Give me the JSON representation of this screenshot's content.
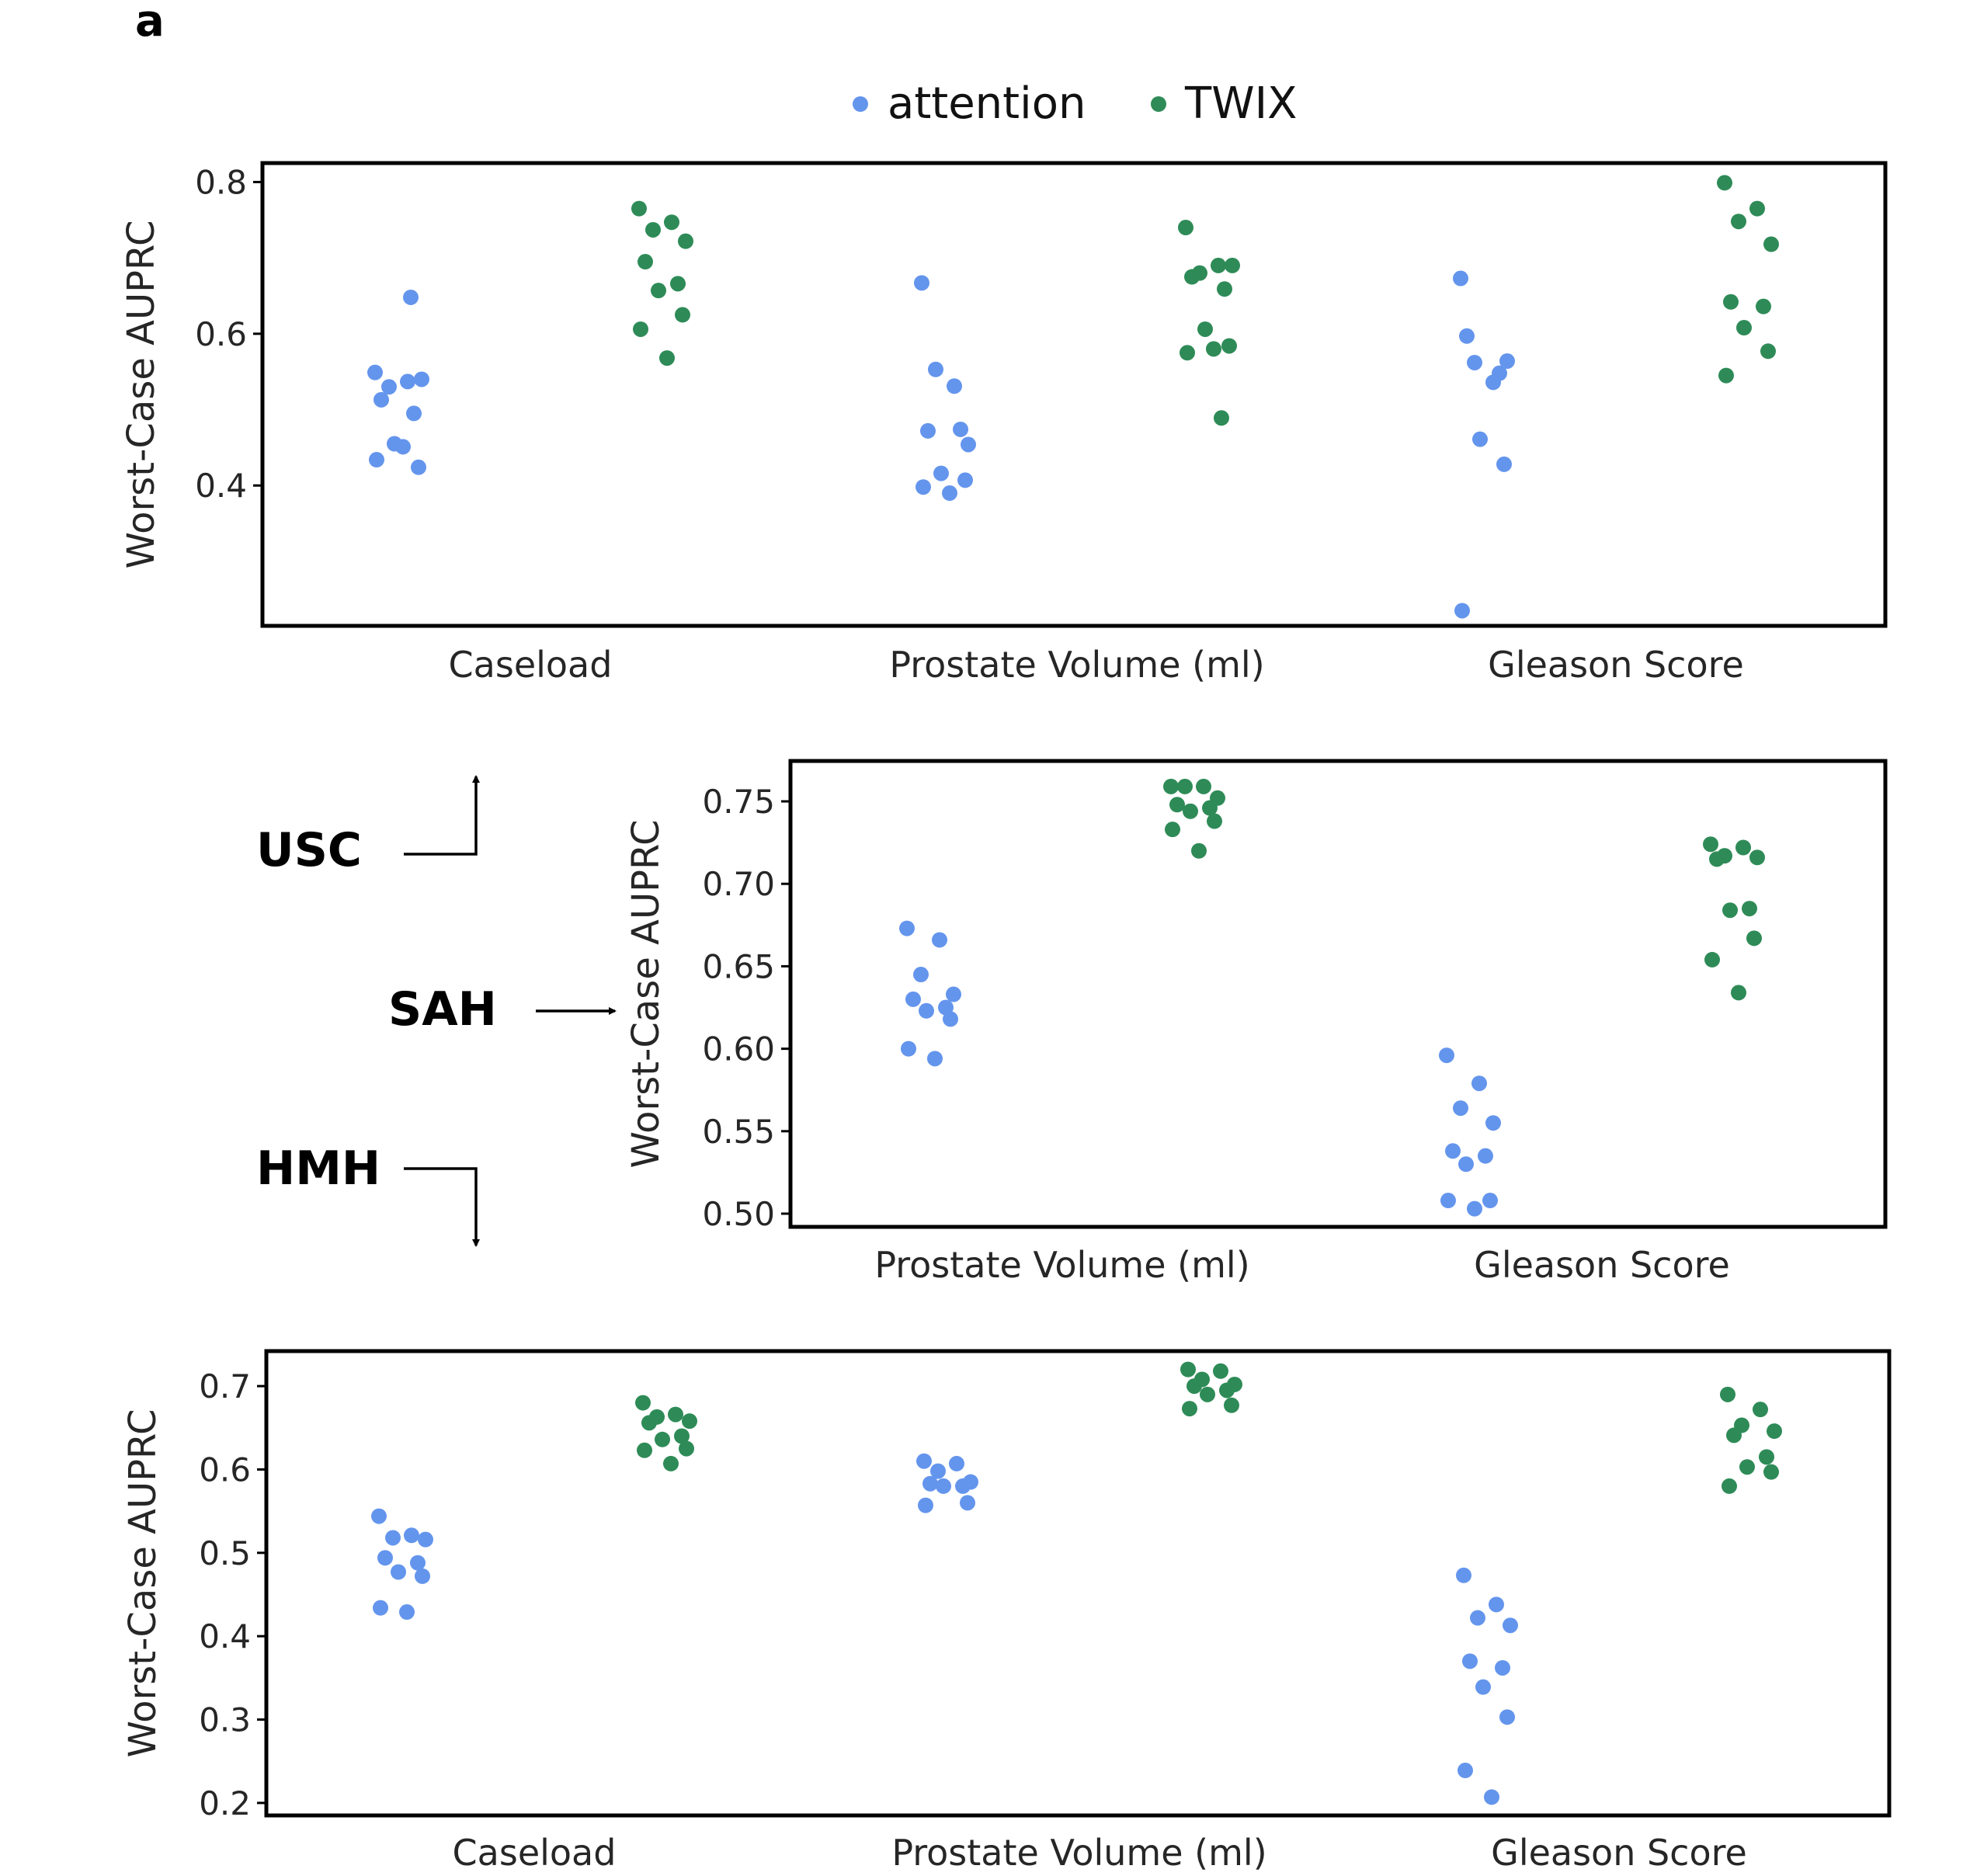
{
  "panel_label": "a",
  "legend": [
    {
      "label": "attention",
      "color": "#6495ED"
    },
    {
      "label": "TWIX",
      "color": "#2E8B57"
    }
  ],
  "sites": {
    "usc": "USC",
    "sah": "SAH",
    "hmh": "HMH"
  },
  "chart_data": [
    {
      "type": "scatter",
      "site": "USC",
      "ylabel": "Worst-Case AUPRC",
      "ylim": [
        0.215,
        0.825
      ],
      "yticks": [
        0.4,
        0.6,
        0.8
      ],
      "ytick_labels": [
        "0.4",
        "0.6",
        "0.8"
      ],
      "categories": [
        "Caseload",
        "Prostate Volume (ml)",
        "Gleason Score"
      ],
      "series": [
        {
          "name": "attention",
          "values": [
            [
              0.549,
              0.537,
              0.53,
              0.54,
              0.513,
              0.495,
              0.455,
              0.424,
              0.434,
              0.451,
              0.648
            ],
            [
              0.667,
              0.531,
              0.553,
              0.454,
              0.472,
              0.474,
              0.416,
              0.407,
              0.398,
              0.39
            ],
            [
              0.673,
              0.536,
              0.562,
              0.564,
              0.597,
              0.548,
              0.461,
              0.428,
              0.235
            ]
          ]
        },
        {
          "name": "TWIX",
          "values": [
            [
              0.765,
              0.747,
              0.737,
              0.722,
              0.695,
              0.666,
              0.657,
              0.625,
              0.606,
              0.568
            ],
            [
              0.74,
              0.69,
              0.68,
              0.69,
              0.675,
              0.659,
              0.606,
              0.584,
              0.575,
              0.58,
              0.489
            ],
            [
              0.799,
              0.765,
              0.748,
              0.718,
              0.642,
              0.636,
              0.608,
              0.577,
              0.545
            ]
          ]
        }
      ]
    },
    {
      "type": "scatter",
      "site": "SAH",
      "ylabel": "Worst-Case AUPRC",
      "ylim": [
        0.492,
        0.7745
      ],
      "yticks": [
        0.5,
        0.55,
        0.6,
        0.65,
        0.7,
        0.75
      ],
      "ytick_labels": [
        "0.50",
        "0.55",
        "0.60",
        "0.65",
        "0.70",
        "0.75"
      ],
      "categories": [
        "Prostate Volume (ml)",
        "Gleason Score"
      ],
      "series": [
        {
          "name": "attention",
          "values": [
            [
              0.673,
              0.666,
              0.645,
              0.633,
              0.63,
              0.625,
              0.623,
              0.618,
              0.6,
              0.594
            ],
            [
              0.596,
              0.579,
              0.564,
              0.555,
              0.538,
              0.535,
              0.53,
              0.508,
              0.508,
              0.503
            ]
          ]
        },
        {
          "name": "TWIX",
          "values": [
            [
              0.759,
              0.759,
              0.759,
              0.752,
              0.748,
              0.746,
              0.744,
              0.738,
              0.733,
              0.72
            ],
            [
              0.724,
              0.722,
              0.717,
              0.716,
              0.715,
              0.685,
              0.684,
              0.667,
              0.654,
              0.634
            ]
          ]
        }
      ]
    },
    {
      "type": "scatter",
      "site": "HMH",
      "ylabel": "Worst-Case AUPRC",
      "ylim": [
        0.185,
        0.742
      ],
      "yticks": [
        0.2,
        0.3,
        0.4,
        0.5,
        0.6,
        0.7
      ],
      "ytick_labels": [
        "0.2",
        "0.3",
        "0.4",
        "0.5",
        "0.6",
        "0.7"
      ],
      "categories": [
        "Caseload",
        "Prostate Volume (ml)",
        "Gleason Score"
      ],
      "series": [
        {
          "name": "attention",
          "values": [
            [
              0.544,
              0.521,
              0.518,
              0.516,
              0.494,
              0.488,
              0.477,
              0.472,
              0.434,
              0.429
            ],
            [
              0.61,
              0.607,
              0.598,
              0.585,
              0.583,
              0.58,
              0.58,
              0.56,
              0.557
            ],
            [
              0.473,
              0.438,
              0.422,
              0.413,
              0.37,
              0.362,
              0.339,
              0.303,
              0.239,
              0.207
            ]
          ]
        },
        {
          "name": "TWIX",
          "values": [
            [
              0.68,
              0.666,
              0.663,
              0.658,
              0.656,
              0.64,
              0.636,
              0.625,
              0.623,
              0.607
            ],
            [
              0.72,
              0.718,
              0.708,
              0.702,
              0.7,
              0.695,
              0.69,
              0.677,
              0.673
            ],
            [
              0.69,
              0.672,
              0.653,
              0.646,
              0.641,
              0.615,
              0.603,
              0.597,
              0.58
            ]
          ]
        }
      ]
    }
  ]
}
